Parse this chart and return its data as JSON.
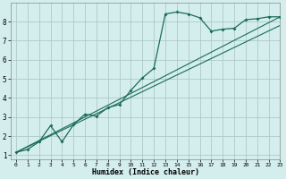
{
  "xlabel": "Humidex (Indice chaleur)",
  "xlim": [
    -0.5,
    23
  ],
  "ylim": [
    0.8,
    9
  ],
  "xticks": [
    0,
    1,
    2,
    3,
    4,
    5,
    6,
    7,
    8,
    9,
    10,
    11,
    12,
    13,
    14,
    15,
    16,
    17,
    18,
    19,
    20,
    21,
    22,
    23
  ],
  "yticks": [
    1,
    2,
    3,
    4,
    5,
    6,
    7,
    8
  ],
  "bg_color": "#d4eeee",
  "grid_color": "#b0c8c8",
  "line_color": "#1a6b5a",
  "curve_x": [
    0,
    1,
    2,
    3,
    4,
    5,
    6,
    7,
    8,
    9,
    10,
    11,
    12,
    13,
    14,
    15,
    16,
    17,
    18,
    19,
    20,
    21,
    22,
    23
  ],
  "curve_y": [
    1.15,
    1.3,
    1.7,
    2.55,
    1.7,
    2.6,
    3.15,
    3.05,
    3.5,
    3.65,
    4.4,
    5.05,
    5.55,
    8.4,
    8.5,
    8.4,
    8.2,
    7.5,
    7.6,
    7.65,
    8.1,
    8.15,
    8.25,
    8.25
  ],
  "ref_line1": {
    "x": [
      0,
      23
    ],
    "y": [
      1.15,
      8.25
    ]
  },
  "ref_line2": {
    "x": [
      0,
      23
    ],
    "y": [
      1.15,
      7.8
    ]
  }
}
